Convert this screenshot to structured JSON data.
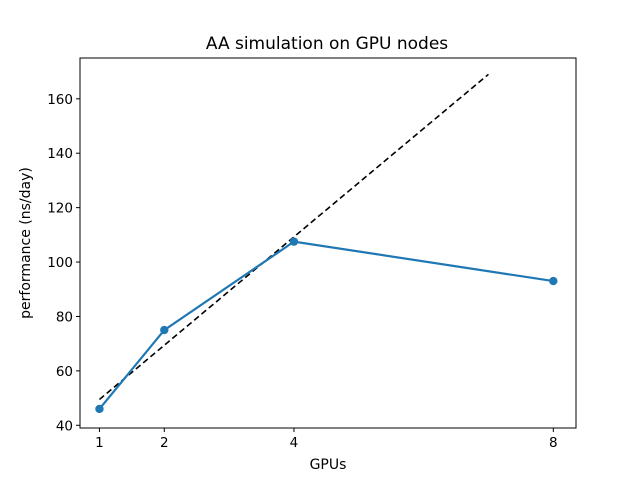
{
  "chart_data": {
    "type": "line",
    "title": "AA simulation on GPU nodes",
    "xlabel": "GPUs",
    "ylabel": "performance (ns/day)",
    "xlim": [
      0.7,
      8.35
    ],
    "ylim": [
      39,
      175
    ],
    "xticks": [
      1,
      2,
      4,
      8
    ],
    "yticks": [
      40,
      60,
      80,
      100,
      120,
      140,
      160
    ],
    "grid": false,
    "series": [
      {
        "style": "solid-markers",
        "color": "#1f77b4",
        "x": [
          1,
          2,
          4,
          8
        ],
        "y": [
          46,
          75,
          107.5,
          93
        ]
      },
      {
        "style": "dashed",
        "color": "#000000",
        "x": [
          1,
          7
        ],
        "y": [
          49.5,
          169
        ]
      }
    ]
  }
}
